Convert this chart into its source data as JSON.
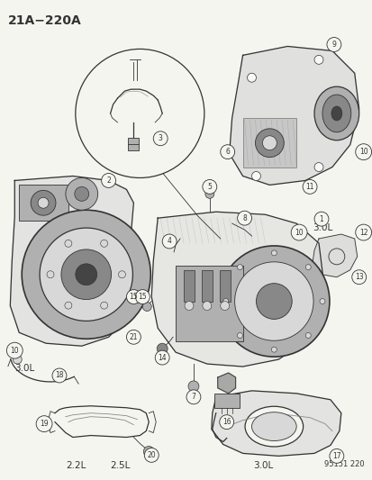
{
  "background_color": "#f5f5f0",
  "fig_width": 4.14,
  "fig_height": 5.33,
  "dpi": 100,
  "title": "21A−220A",
  "catalog_number": "95151 220",
  "label_3ol_right": "3.0L",
  "label_3ol_left": "3.0L",
  "label_22l": "2.2L",
  "label_25l": "2.5L",
  "label_3ol_bottom": "3.0L",
  "line_color": "#333333",
  "light_gray": "#b0b0b0",
  "mid_gray": "#888888",
  "dark_gray": "#444444",
  "very_light": "#d8d8d8",
  "white": "#f8f8f8"
}
